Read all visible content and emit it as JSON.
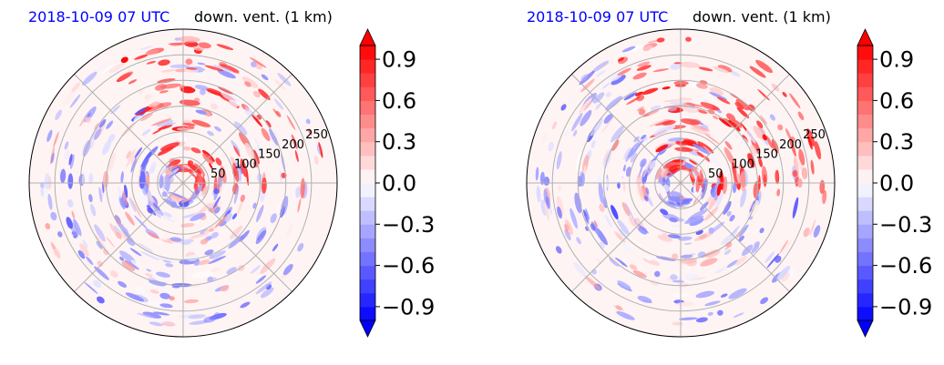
{
  "chart_data": [
    {
      "type": "heatmap",
      "projection": "polar",
      "title_left": "2018-10-09 07 UTC",
      "title_right": "down. vent. (1 km)",
      "radial_ticks": [
        "50",
        "100",
        "150",
        "200",
        "250"
      ],
      "radial_values": [
        50,
        100,
        150,
        200,
        250
      ],
      "rmax": 300,
      "grid": true,
      "colormap": "bwr",
      "colorbar": {
        "ticks": [
          "0.9",
          "0.6",
          "0.3",
          "0.0",
          "−0.3",
          "−0.6",
          "−0.9"
        ],
        "tick_values": [
          0.9,
          0.6,
          0.3,
          0.0,
          -0.3,
          -0.6,
          -0.9
        ],
        "vmin": -1.0,
        "vmax": 1.0,
        "extend": "both"
      }
    },
    {
      "type": "heatmap",
      "projection": "polar",
      "title_left": "2018-10-09 07 UTC",
      "title_right": "down. vent. (1 km)",
      "radial_ticks": [
        "50",
        "100",
        "150",
        "200",
        "250"
      ],
      "radial_values": [
        50,
        100,
        150,
        200,
        250
      ],
      "rmax": 300,
      "grid": true,
      "colormap": "bwr",
      "colorbar": {
        "ticks": [
          "0.9",
          "0.6",
          "0.3",
          "0.0",
          "−0.3",
          "−0.6",
          "−0.9"
        ],
        "tick_values": [
          0.9,
          0.6,
          0.3,
          0.0,
          -0.3,
          -0.6,
          -0.9
        ],
        "vmin": -1.0,
        "vmax": 1.0,
        "extend": "both"
      }
    }
  ],
  "colors": {
    "positive": "#ff0000",
    "negative": "#0000ff",
    "neutral": "#ffffff",
    "grid": "#b0b0b0",
    "title_left": "#0000ff"
  }
}
